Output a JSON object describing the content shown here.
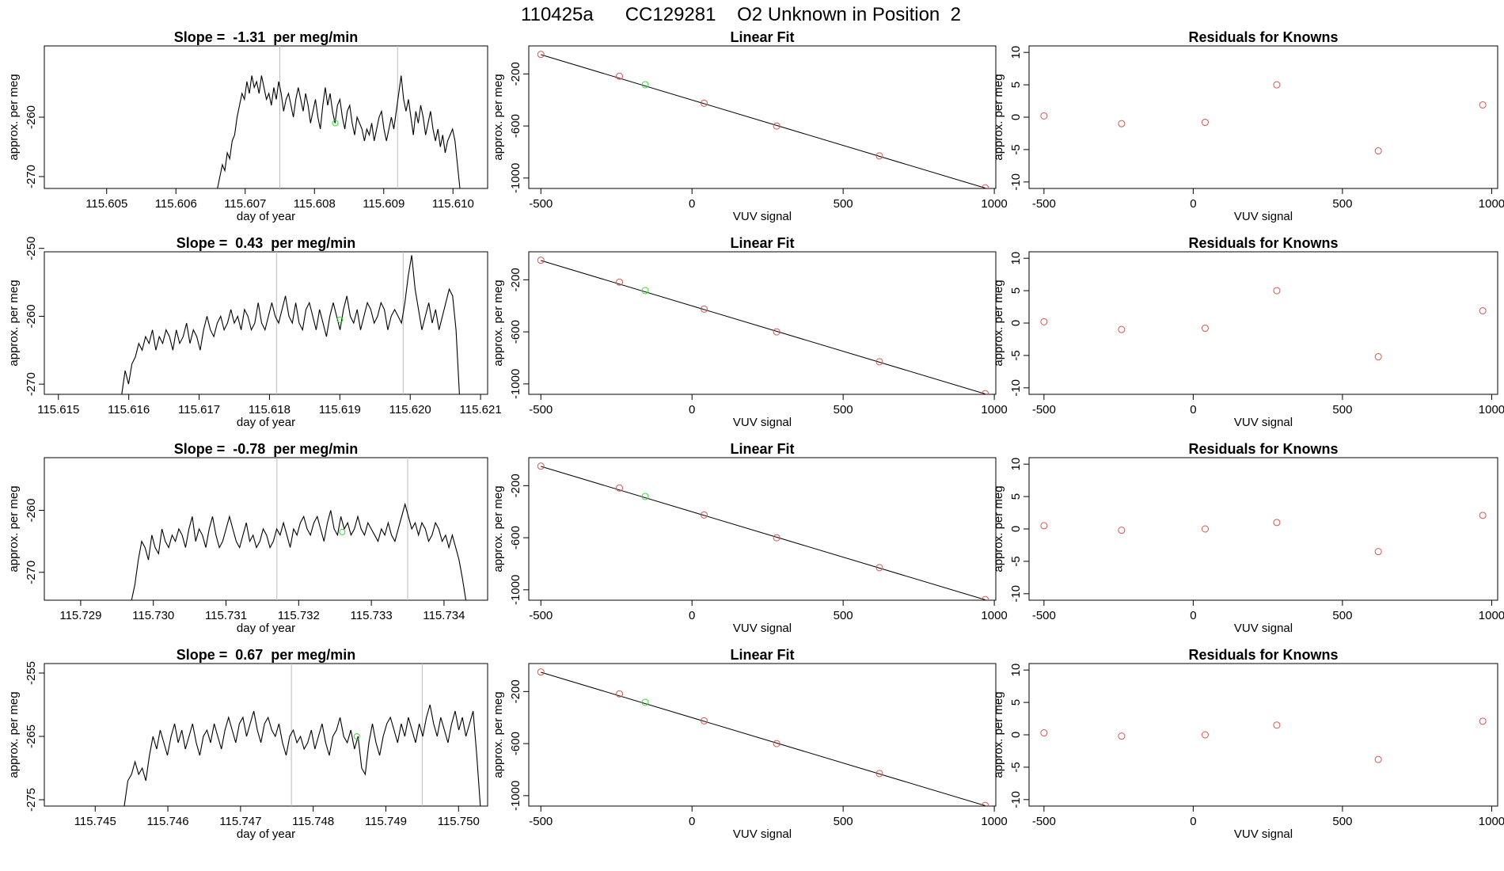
{
  "page_title": "110425a      CC129281    O2 Unknown in Position  2",
  "colors": {
    "known": "#d9534f",
    "unknown": "#33dd33",
    "trace": "#000000",
    "marker": "#bbbbbb"
  },
  "chart_data": [
    {
      "type": "line",
      "panel": "trace-1",
      "title": "Slope =  -1.31  per meg/min",
      "xlabel": "day of year",
      "ylabel": "approx. per meg",
      "xlim": [
        115.6041,
        115.6105
      ],
      "ylim": [
        -272,
        -248
      ],
      "xticks": [
        "115.605",
        "115.606",
        "115.607",
        "115.608",
        "115.609",
        "115.610"
      ],
      "yticks": [
        "-270",
        "-260"
      ],
      "markers": [
        115.6075,
        115.6092
      ],
      "unknown_point": [
        115.6083,
        -261
      ],
      "x_start": 115.6066,
      "x_end": 115.6101,
      "series": [
        {
          "y": [
            -272,
            -270,
            -268,
            -269,
            -266,
            -267,
            -264,
            -263,
            -260,
            -258,
            -256,
            -257,
            -254,
            -256,
            -253,
            -255,
            -254,
            -256,
            -253,
            -255,
            -257,
            -256,
            -258,
            -255,
            -257,
            -254,
            -256,
            -259,
            -257,
            -256,
            -258,
            -260,
            -257,
            -255,
            -257,
            -259,
            -256,
            -258,
            -261,
            -259,
            -257,
            -260,
            -262,
            -258,
            -255,
            -258,
            -256,
            -259,
            -261,
            -258,
            -257,
            -260,
            -262,
            -259,
            -258,
            -261,
            -263,
            -260,
            -261,
            -262,
            -264,
            -262,
            -263,
            -261,
            -264,
            -262,
            -260,
            -259,
            -262,
            -264,
            -262,
            -260,
            -262,
            -259,
            -256,
            -253,
            -257,
            -259,
            -257,
            -260,
            -263,
            -259,
            -261,
            -258,
            -260,
            -263,
            -261,
            -259,
            -262,
            -264,
            -262,
            -265,
            -263,
            -266,
            -264,
            -263,
            -262,
            -264,
            -268,
            -272
          ]
        }
      ]
    },
    {
      "type": "scatter",
      "panel": "fit-1",
      "title": "Linear Fit",
      "xlabel": "VUV signal",
      "ylabel": "approx. per meg",
      "xlim": [
        -540,
        1005
      ],
      "ylim": [
        -1080,
        15
      ],
      "xticks": [
        -500,
        0,
        500,
        1000
      ],
      "yticks": [
        -200,
        -600,
        -1000
      ],
      "knowns": [
        [
          -500,
          -50
        ],
        [
          -240,
          -218
        ],
        [
          40,
          -425
        ],
        [
          280,
          -600
        ],
        [
          620,
          -830
        ],
        [
          970,
          -1075
        ]
      ],
      "unknown": [
        [
          -155,
          -283
        ]
      ],
      "fit_line": [
        [
          -500,
          -52
        ],
        [
          970,
          -1077
        ]
      ]
    },
    {
      "type": "scatter",
      "panel": "residuals-1",
      "title": "Residuals for Knowns",
      "xlabel": "VUV signal",
      "ylabel": "approx. per meg",
      "xlim": [
        -550,
        1020
      ],
      "ylim": [
        -11,
        11
      ],
      "xticks": [
        -500,
        0,
        500,
        1000
      ],
      "yticks": [
        10,
        5,
        0,
        -5,
        -10
      ],
      "points": [
        [
          -500,
          0.2
        ],
        [
          -240,
          -1.0
        ],
        [
          40,
          -0.8
        ],
        [
          280,
          5.0
        ],
        [
          620,
          -5.2
        ],
        [
          970,
          1.9
        ]
      ]
    },
    {
      "type": "line",
      "panel": "trace-2",
      "title": "Slope =  0.43  per meg/min",
      "xlabel": "day of year",
      "ylabel": "approx. per meg",
      "xlim": [
        115.6148,
        115.6211
      ],
      "ylim": [
        -271.5,
        -250.5
      ],
      "xticks": [
        "115.615",
        "115.616",
        "115.617",
        "115.618",
        "115.619",
        "115.620",
        "115.621"
      ],
      "yticks": [
        "-250",
        "-260",
        "-270"
      ],
      "markers": [
        115.6181,
        115.6199
      ],
      "unknown_point": [
        115.619,
        -260.5
      ],
      "x_start": 115.6159,
      "x_end": 115.6207,
      "series": [
        {
          "y": [
            -271.5,
            -268,
            -270,
            -267,
            -266,
            -264,
            -265,
            -263,
            -264,
            -262,
            -265,
            -263,
            -264,
            -262,
            -263,
            -265,
            -262,
            -264,
            -263,
            -261,
            -264,
            -262,
            -263,
            -265,
            -262,
            -260,
            -262,
            -263,
            -261,
            -260,
            -262,
            -261,
            -259,
            -261,
            -260,
            -262,
            -259,
            -260,
            -262,
            -261,
            -258,
            -261,
            -262,
            -260,
            -258,
            -260,
            -261,
            -259,
            -257,
            -260,
            -261,
            -258,
            -261,
            -262,
            -259,
            -258,
            -260,
            -262,
            -259,
            -261,
            -263,
            -260,
            -258,
            -260,
            -262,
            -259,
            -257,
            -260,
            -261,
            -259,
            -262,
            -260,
            -258,
            -259,
            -261,
            -260,
            -258,
            -259,
            -262,
            -260,
            -259,
            -260,
            -261,
            -258,
            -254,
            -251,
            -256,
            -259,
            -262,
            -260,
            -258,
            -261,
            -259,
            -262,
            -260,
            -258,
            -256,
            -257,
            -262,
            -271.5
          ]
        }
      ]
    },
    {
      "type": "scatter",
      "panel": "fit-2",
      "title": "Linear Fit",
      "xlabel": "VUV signal",
      "ylabel": "approx. per meg",
      "xlim": [
        -540,
        1005
      ],
      "ylim": [
        -1080,
        15
      ],
      "xticks": [
        -500,
        0,
        500,
        1000
      ],
      "yticks": [
        -200,
        -600,
        -1000
      ],
      "knowns": [
        [
          -500,
          -50
        ],
        [
          -240,
          -218
        ],
        [
          40,
          -425
        ],
        [
          280,
          -600
        ],
        [
          620,
          -830
        ],
        [
          970,
          -1075
        ]
      ],
      "unknown": [
        [
          -155,
          -283
        ]
      ],
      "fit_line": [
        [
          -500,
          -52
        ],
        [
          970,
          -1077
        ]
      ]
    },
    {
      "type": "scatter",
      "panel": "residuals-2",
      "title": "Residuals for Knowns",
      "xlabel": "VUV signal",
      "ylabel": "approx. per meg",
      "xlim": [
        -550,
        1020
      ],
      "ylim": [
        -11,
        11
      ],
      "xticks": [
        -500,
        0,
        500,
        1000
      ],
      "yticks": [
        10,
        5,
        0,
        -5,
        -10
      ],
      "points": [
        [
          -500,
          0.2
        ],
        [
          -240,
          -1.0
        ],
        [
          40,
          -0.8
        ],
        [
          280,
          5.0
        ],
        [
          620,
          -5.2
        ],
        [
          970,
          1.9
        ]
      ]
    },
    {
      "type": "line",
      "panel": "trace-3",
      "title": "Slope =  -0.78  per meg/min",
      "xlabel": "day of year",
      "ylabel": "approx. per meg",
      "xlim": [
        115.7285,
        115.7346
      ],
      "ylim": [
        -274.5,
        -251.5
      ],
      "xticks": [
        "115.729",
        "115.730",
        "115.731",
        "115.732",
        "115.733",
        "115.734"
      ],
      "yticks": [
        "-260",
        "-270"
      ],
      "markers": [
        115.7317,
        115.7335
      ],
      "unknown_point": [
        115.7326,
        -263.5
      ],
      "x_start": 115.7297,
      "x_end": 115.7343,
      "series": [
        {
          "y": [
            -274.5,
            -272,
            -268,
            -265,
            -266,
            -268,
            -264,
            -266,
            -267,
            -263,
            -265,
            -266,
            -264,
            -265,
            -263,
            -264,
            -266,
            -263,
            -261,
            -265,
            -263,
            -264,
            -266,
            -263,
            -261,
            -264,
            -266,
            -265,
            -263,
            -261,
            -263,
            -265,
            -266,
            -264,
            -262,
            -265,
            -264,
            -266,
            -265,
            -263,
            -264,
            -266,
            -265,
            -263,
            -264,
            -262,
            -264,
            -266,
            -263,
            -264,
            -262,
            -261,
            -263,
            -264,
            -262,
            -261,
            -263,
            -265,
            -262,
            -260,
            -263,
            -264,
            -261,
            -263,
            -262,
            -264,
            -263,
            -261,
            -263,
            -264,
            -262,
            -263,
            -264,
            -265,
            -263,
            -264,
            -262,
            -264,
            -265,
            -263,
            -261,
            -259,
            -261,
            -263,
            -262,
            -264,
            -262,
            -263,
            -265,
            -264,
            -262,
            -263,
            -265,
            -264,
            -266,
            -264,
            -266,
            -268,
            -271,
            -274.5
          ]
        }
      ]
    },
    {
      "type": "scatter",
      "panel": "fit-3",
      "title": "Linear Fit",
      "xlabel": "VUV signal",
      "ylabel": "approx. per meg",
      "xlim": [
        -540,
        1005
      ],
      "ylim": [
        -1080,
        15
      ],
      "xticks": [
        -500,
        0,
        500,
        1000
      ],
      "yticks": [
        -200,
        -600,
        -1000
      ],
      "knowns": [
        [
          -500,
          -50
        ],
        [
          -240,
          -218
        ],
        [
          40,
          -425
        ],
        [
          280,
          -600
        ],
        [
          620,
          -830
        ],
        [
          970,
          -1075
        ]
      ],
      "unknown": [
        [
          -155,
          -283
        ]
      ],
      "fit_line": [
        [
          -500,
          -52
        ],
        [
          970,
          -1077
        ]
      ]
    },
    {
      "type": "scatter",
      "panel": "residuals-3",
      "title": "Residuals for Knowns",
      "xlabel": "VUV signal",
      "ylabel": "approx. per meg",
      "xlim": [
        -550,
        1020
      ],
      "ylim": [
        -11,
        11
      ],
      "xticks": [
        -500,
        0,
        500,
        1000
      ],
      "yticks": [
        10,
        5,
        0,
        -5,
        -10
      ],
      "points": [
        [
          -500,
          0.5
        ],
        [
          -240,
          -0.2
        ],
        [
          40,
          0.0
        ],
        [
          280,
          1.0
        ],
        [
          620,
          -3.5
        ],
        [
          970,
          2.1
        ]
      ]
    },
    {
      "type": "line",
      "panel": "trace-4",
      "title": "Slope =  0.67  per meg/min",
      "xlabel": "day of year",
      "ylabel": "approx. per meg",
      "xlim": [
        115.7443,
        115.7504
      ],
      "ylim": [
        -276,
        -253.5
      ],
      "xticks": [
        "115.745",
        "115.746",
        "115.747",
        "115.748",
        "115.749",
        "115.750"
      ],
      "yticks": [
        "-255",
        "-265",
        "-275"
      ],
      "markers": [
        115.7477,
        115.7495
      ],
      "unknown_point": [
        115.7486,
        -265
      ],
      "x_start": 115.7454,
      "x_end": 115.7503,
      "series": [
        {
          "y": [
            -276,
            -272,
            -271,
            -269,
            -271,
            -270,
            -272,
            -268,
            -265,
            -267,
            -264,
            -266,
            -268,
            -265,
            -263,
            -266,
            -264,
            -267,
            -265,
            -263,
            -266,
            -268,
            -265,
            -264,
            -266,
            -263,
            -265,
            -267,
            -264,
            -262,
            -264,
            -266,
            -263,
            -262,
            -265,
            -263,
            -261,
            -264,
            -266,
            -263,
            -262,
            -264,
            -265,
            -263,
            -266,
            -268,
            -265,
            -264,
            -266,
            -265,
            -267,
            -266,
            -264,
            -267,
            -265,
            -263,
            -266,
            -268,
            -265,
            -264,
            -262,
            -265,
            -266,
            -264,
            -267,
            -265,
            -270,
            -271,
            -266,
            -263,
            -266,
            -268,
            -265,
            -263,
            -262,
            -264,
            -266,
            -263,
            -265,
            -262,
            -264,
            -266,
            -263,
            -265,
            -262,
            -260,
            -263,
            -265,
            -262,
            -264,
            -266,
            -263,
            -261,
            -264,
            -262,
            -265,
            -263,
            -261,
            -268,
            -276
          ]
        }
      ]
    },
    {
      "type": "scatter",
      "panel": "fit-4",
      "title": "Linear Fit",
      "xlabel": "VUV signal",
      "ylabel": "approx. per meg",
      "xlim": [
        -540,
        1005
      ],
      "ylim": [
        -1080,
        15
      ],
      "xticks": [
        -500,
        0,
        500,
        1000
      ],
      "yticks": [
        -200,
        -600,
        -1000
      ],
      "knowns": [
        [
          -500,
          -50
        ],
        [
          -240,
          -218
        ],
        [
          40,
          -425
        ],
        [
          280,
          -600
        ],
        [
          620,
          -830
        ],
        [
          970,
          -1075
        ]
      ],
      "unknown": [
        [
          -155,
          -283
        ]
      ],
      "fit_line": [
        [
          -500,
          -52
        ],
        [
          970,
          -1077
        ]
      ]
    },
    {
      "type": "scatter",
      "panel": "residuals-4",
      "title": "Residuals for Knowns",
      "xlabel": "VUV signal",
      "ylabel": "approx. per meg",
      "xlim": [
        -550,
        1020
      ],
      "ylim": [
        -11,
        11
      ],
      "xticks": [
        -500,
        0,
        500,
        1000
      ],
      "yticks": [
        10,
        5,
        0,
        -5,
        -10
      ],
      "points": [
        [
          -500,
          0.3
        ],
        [
          -240,
          -0.2
        ],
        [
          40,
          0.0
        ],
        [
          280,
          1.5
        ],
        [
          620,
          -3.8
        ],
        [
          970,
          2.1
        ]
      ]
    }
  ]
}
